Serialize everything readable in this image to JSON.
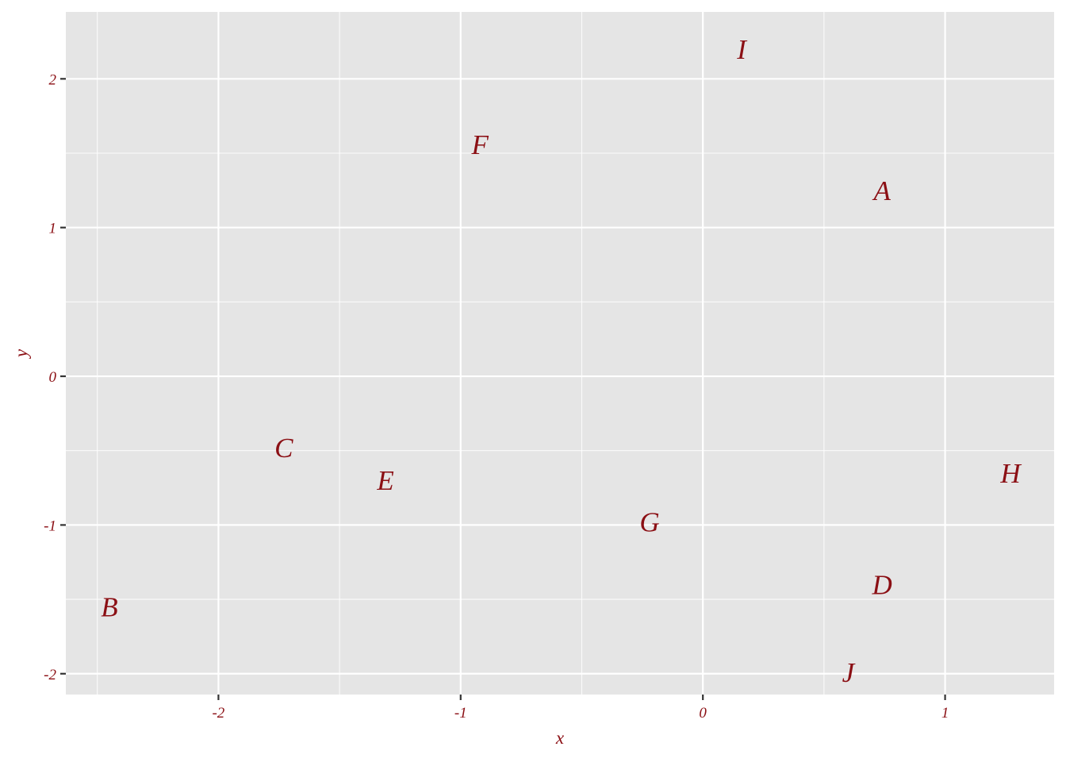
{
  "chart_data": {
    "type": "scatter",
    "title": "",
    "xlabel": "x",
    "ylabel": "y",
    "xlim": [
      -2.63,
      1.45
    ],
    "ylim": [
      -2.14,
      2.45
    ],
    "x_ticks": [
      -2,
      -1,
      0,
      1
    ],
    "y_ticks": [
      -2,
      -1,
      0,
      1,
      2
    ],
    "x_tick_labels": [
      "-2",
      "-1",
      "0",
      "1"
    ],
    "y_tick_labels": [
      "-2",
      "-1",
      "0",
      "1",
      "2"
    ],
    "grid": true,
    "legend": "none",
    "colors": {
      "panel": "#e5e5e5",
      "grid": "#ffffff",
      "text": "#8b0f14"
    },
    "points": [
      {
        "label": "A",
        "x": 0.74,
        "y": 1.25
      },
      {
        "label": "B",
        "x": -2.45,
        "y": -1.55
      },
      {
        "label": "C",
        "x": -1.73,
        "y": -0.48
      },
      {
        "label": "D",
        "x": 0.74,
        "y": -1.4
      },
      {
        "label": "E",
        "x": -1.31,
        "y": -0.7
      },
      {
        "label": "F",
        "x": -0.92,
        "y": 1.56
      },
      {
        "label": "G",
        "x": -0.22,
        "y": -0.98
      },
      {
        "label": "H",
        "x": 1.27,
        "y": -0.65
      },
      {
        "label": "I",
        "x": 0.16,
        "y": 2.2
      },
      {
        "label": "J",
        "x": 0.6,
        "y": -1.99
      }
    ]
  }
}
